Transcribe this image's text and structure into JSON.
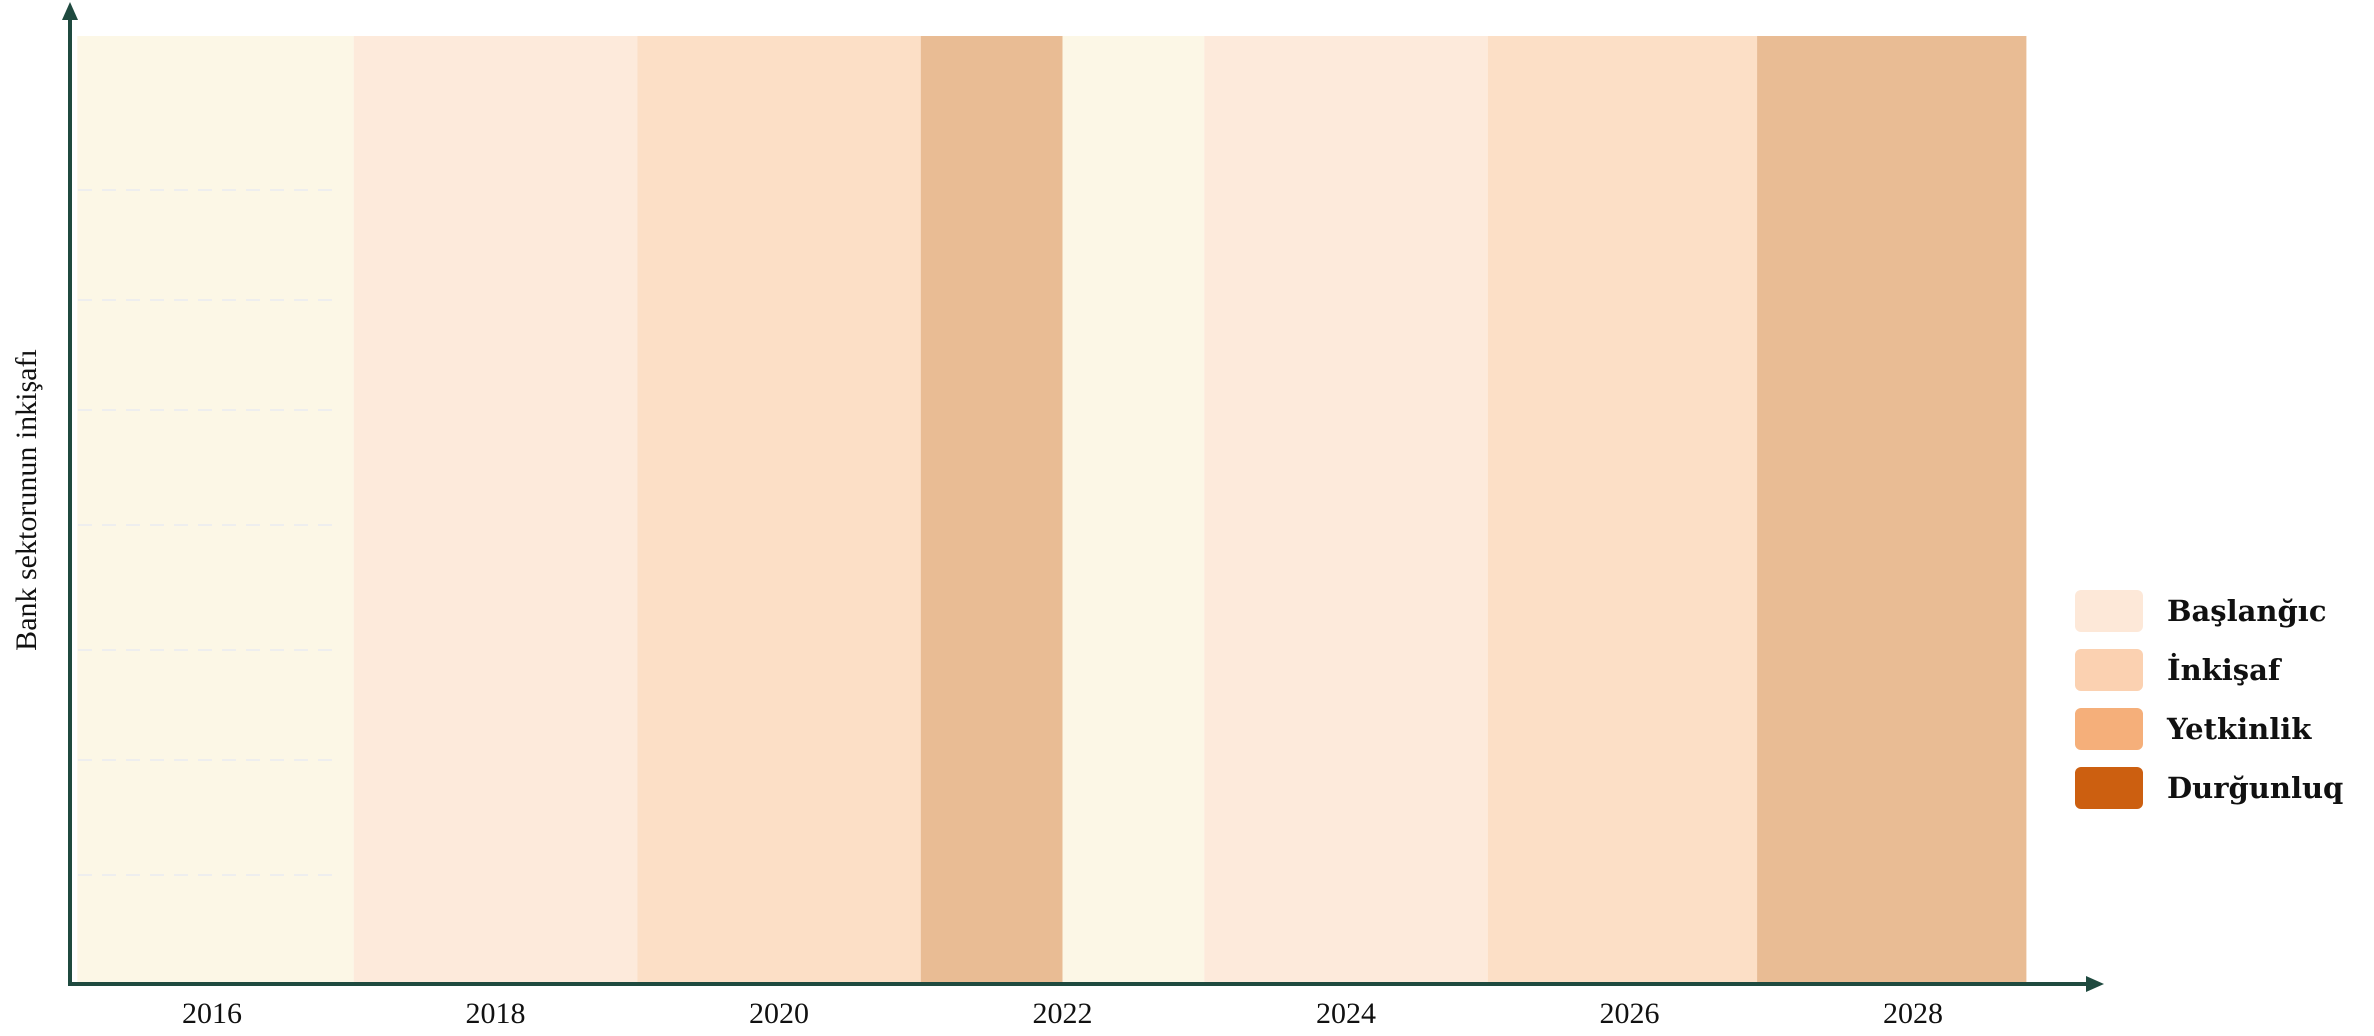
{
  "chart_data": {
    "type": "bar",
    "xlabel": "",
    "ylabel": "Bank sektorunun inkişafı",
    "x_ticks": [
      "2016",
      "2018",
      "2020",
      "2022",
      "2024",
      "2026",
      "2028"
    ],
    "xlim": [
      2015.0,
      2028.9
    ],
    "legend_position": "right",
    "grid": true,
    "legend": [
      {
        "name": "Başlanğıc",
        "color": "#fde8d8"
      },
      {
        "name": "İnkişaf",
        "color": "#fbd1b1"
      },
      {
        "name": "Yetkinlik",
        "color": "#f5af7a"
      },
      {
        "name": "Durğunluq",
        "color": "#cc5f10"
      }
    ],
    "periods": [
      {
        "start": 2015.05,
        "end": 2017.0,
        "color": "#fcf7e6"
      },
      {
        "start": 2017.0,
        "end": 2019.0,
        "color": "#fdeadb"
      },
      {
        "start": 2019.0,
        "end": 2021.0,
        "color": "#fcdfc6"
      },
      {
        "start": 2021.0,
        "end": 2022.0,
        "color": "#e9bc94"
      },
      {
        "start": 2022.0,
        "end": 2023.0,
        "color": "#fcf7e6"
      },
      {
        "start": 2023.0,
        "end": 2025.0,
        "color": "#fdeadb"
      },
      {
        "start": 2025.0,
        "end": 2026.9,
        "color": "#fcdfc6"
      },
      {
        "start": 2026.9,
        "end": 2028.8,
        "color": "#e9bc94"
      }
    ],
    "colors": {
      "axis": "#1f4a3f",
      "grid": "#eeeeee"
    }
  }
}
